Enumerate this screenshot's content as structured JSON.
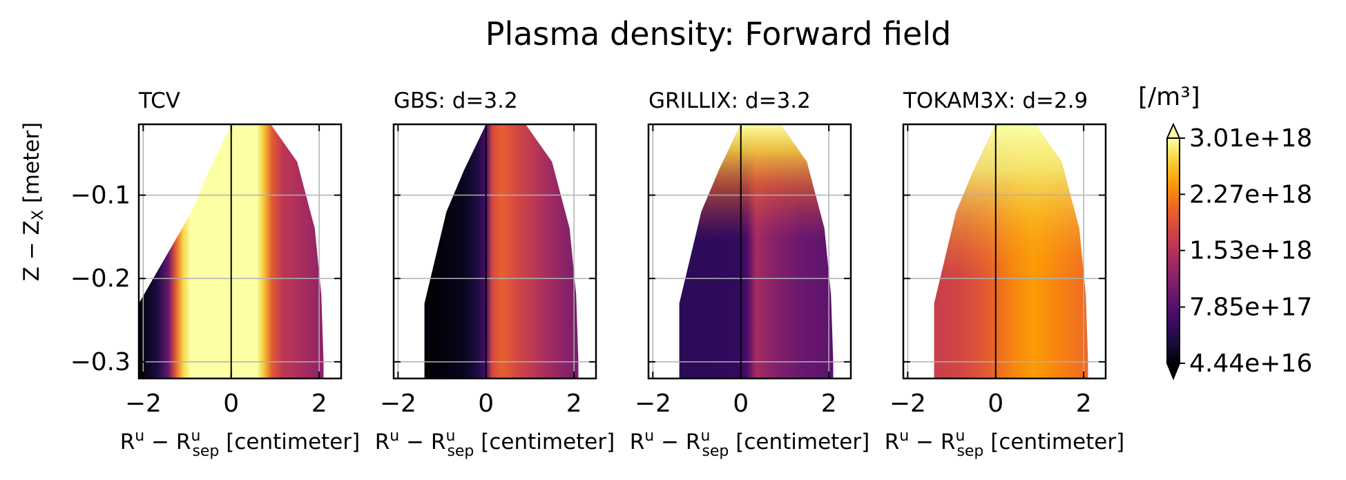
{
  "figure": {
    "title": "Plasma density: Forward field"
  },
  "colorbar": {
    "unit": "[/m³]",
    "tick_labels": [
      "3.01e+18",
      "2.27e+18",
      "1.53e+18",
      "7.85e+17",
      "4.44e+16"
    ],
    "ticks": [
      3.01e+18,
      2.27e+18,
      1.53e+18,
      7.85e+17,
      4.44e+16
    ],
    "colormap": "inferno",
    "extend": "both"
  },
  "chart_data": [
    {
      "type": "heatmap",
      "title": "TCV",
      "xlabel": "R^u − R^u_sep [centimeter]",
      "ylabel": "Z − Z_X [meter]",
      "xlim": [
        -2.1,
        2.5
      ],
      "ylim": [
        -0.32,
        -0.015
      ],
      "xticks": [
        -2,
        0,
        2
      ],
      "xtick_labels": [
        "−2",
        "0",
        "2"
      ],
      "yticks": [
        -0.1,
        -0.2,
        -0.3
      ],
      "ytick_labels": [
        "−0.1",
        "−0.2",
        "−0.3"
      ],
      "grid": true,
      "separatrix_x": 0,
      "description_values": "density peaks (~3.0e18) in band -0.9..0.8 cm, drops to ~4e16 near left boundary"
    },
    {
      "type": "heatmap",
      "title": "GBS: d=3.2",
      "xlabel": "R^u − R^u_sep [centimeter]",
      "xlim": [
        -2.1,
        2.5
      ],
      "ylim": [
        -0.32,
        -0.015
      ],
      "xticks": [
        -2,
        0,
        2
      ],
      "xtick_labels": [
        "−2",
        "0",
        "2"
      ],
      "grid": true,
      "separatrix_x": 0
    },
    {
      "type": "heatmap",
      "title": "GRILLIX: d=3.2",
      "xlabel": "R^u − R^u_sep [centimeter]",
      "xlim": [
        -2.1,
        2.5
      ],
      "ylim": [
        -0.32,
        -0.015
      ],
      "xticks": [
        -2,
        0,
        2
      ],
      "xtick_labels": [
        "−2",
        "0",
        "2"
      ],
      "grid": true,
      "separatrix_x": 0
    },
    {
      "type": "heatmap",
      "title": "TOKAM3X: d=2.9",
      "xlabel": "R^u − R^u_sep [centimeter]",
      "xlim": [
        -2.1,
        2.5
      ],
      "ylim": [
        -0.32,
        -0.015
      ],
      "xticks": [
        -2,
        0,
        2
      ],
      "xtick_labels": [
        "−2",
        "0",
        "2"
      ],
      "grid": true,
      "separatrix_x": 0
    }
  ]
}
